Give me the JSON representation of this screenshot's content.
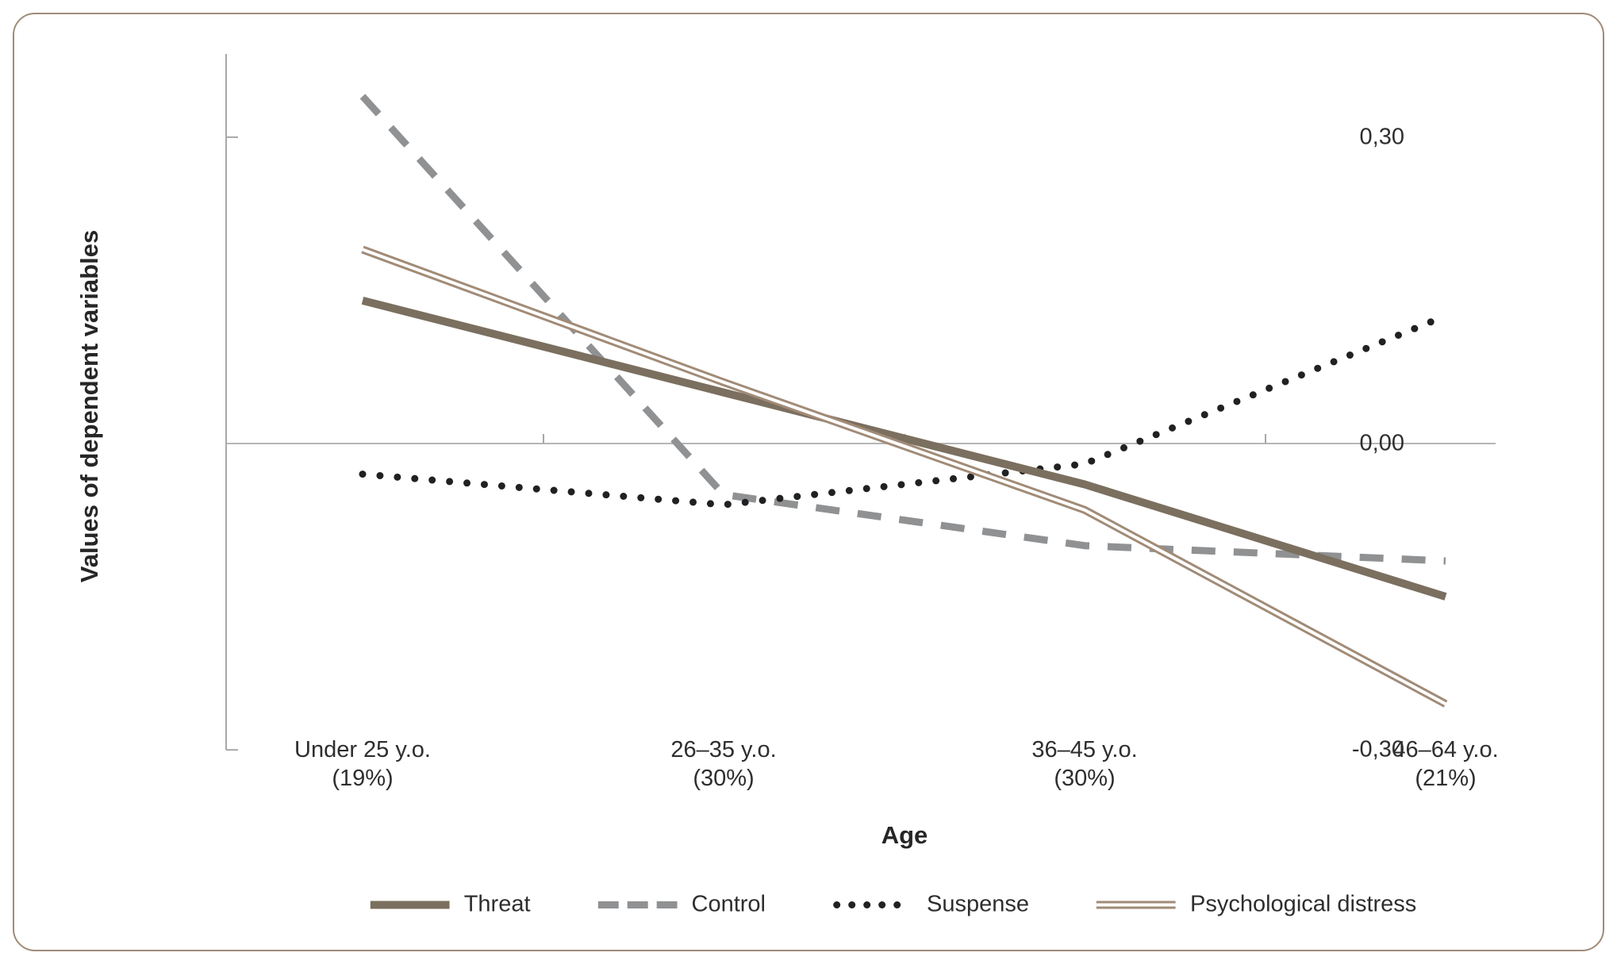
{
  "figure": {
    "border_color": "#a18b77",
    "background_color": "#ffffff",
    "text_color": "#2e2e2e"
  },
  "chart_data": {
    "type": "line",
    "title": "",
    "xlabel": "Age",
    "ylabel": "Values of dependent variables",
    "categories": [
      {
        "label": "Under 25 y.o.",
        "share": "(19%)"
      },
      {
        "label": "26–35 y.o.",
        "share": "(30%)"
      },
      {
        "label": "36–45 y.o.",
        "share": "(30%)"
      },
      {
        "label": "46–64 y.o.",
        "share": "(21%)"
      }
    ],
    "y_ticks": [
      {
        "label": "0,30",
        "value": 0.3
      },
      {
        "label": "0,00",
        "value": 0.0
      },
      {
        "label": "-0,30",
        "value": -0.3
      }
    ],
    "ylim": [
      -0.3,
      0.38
    ],
    "grid": "zero-reference-line-only",
    "legend_position": "bottom",
    "series": [
      {
        "name": "Threat",
        "line_style": "solid",
        "color": "#7b6f5f",
        "values": [
          0.14,
          0.05,
          -0.04,
          -0.15
        ]
      },
      {
        "name": "Control",
        "line_style": "dashed",
        "color": "#8f9193",
        "values": [
          0.34,
          -0.05,
          -0.1,
          -0.115
        ]
      },
      {
        "name": "Suspense",
        "line_style": "dotted",
        "color": "#212121",
        "values": [
          -0.03,
          -0.06,
          -0.02,
          0.125
        ]
      },
      {
        "name": "Psychological distress",
        "line_style": "double",
        "color": "#a18b77",
        "values": [
          0.19,
          0.06,
          -0.065,
          -0.255
        ]
      }
    ]
  }
}
